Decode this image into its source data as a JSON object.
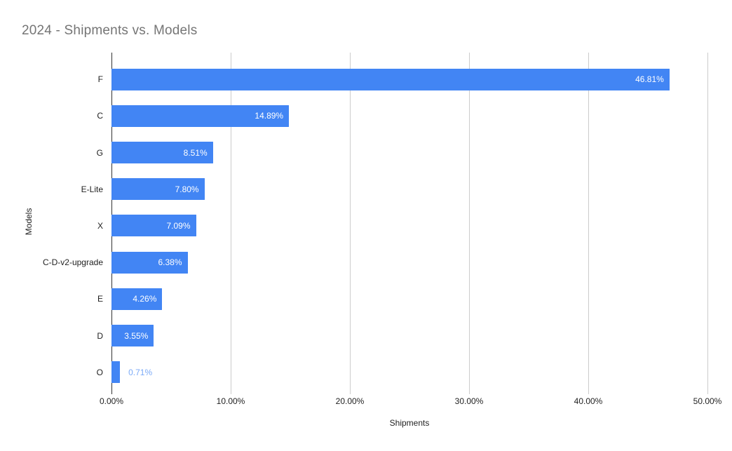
{
  "chart": {
    "title": "2024 - Shipments vs. Models",
    "xlabel": "Shipments",
    "ylabel": "Models"
  },
  "chart_data": {
    "type": "bar",
    "orientation": "horizontal",
    "title": "2024 - Shipments vs. Models",
    "xlabel": "Shipments",
    "ylabel": "Models",
    "categories": [
      "F",
      "C",
      "G",
      "E-Lite",
      "X",
      "C-D-v2-upgrade",
      "E",
      "D",
      "O"
    ],
    "values": [
      46.81,
      14.89,
      8.51,
      7.8,
      7.09,
      6.38,
      4.26,
      3.55,
      0.71
    ],
    "value_labels": [
      "46.81%",
      "14.89%",
      "8.51%",
      "7.80%",
      "7.09%",
      "6.38%",
      "4.26%",
      "3.55%",
      "0.71%"
    ],
    "x_ticks": [
      "0.00%",
      "10.00%",
      "20.00%",
      "30.00%",
      "40.00%",
      "50.00%"
    ],
    "xlim": [
      0,
      50
    ],
    "grid": true,
    "legend": "none",
    "colors": {
      "bar": "#4285f4",
      "label_inside": "#ffffff",
      "label_outside": "#7baaf7",
      "gridline": "#cccccc",
      "baseline": "#333333",
      "title": "#757575",
      "axis_text": "#1f1f1f"
    }
  }
}
